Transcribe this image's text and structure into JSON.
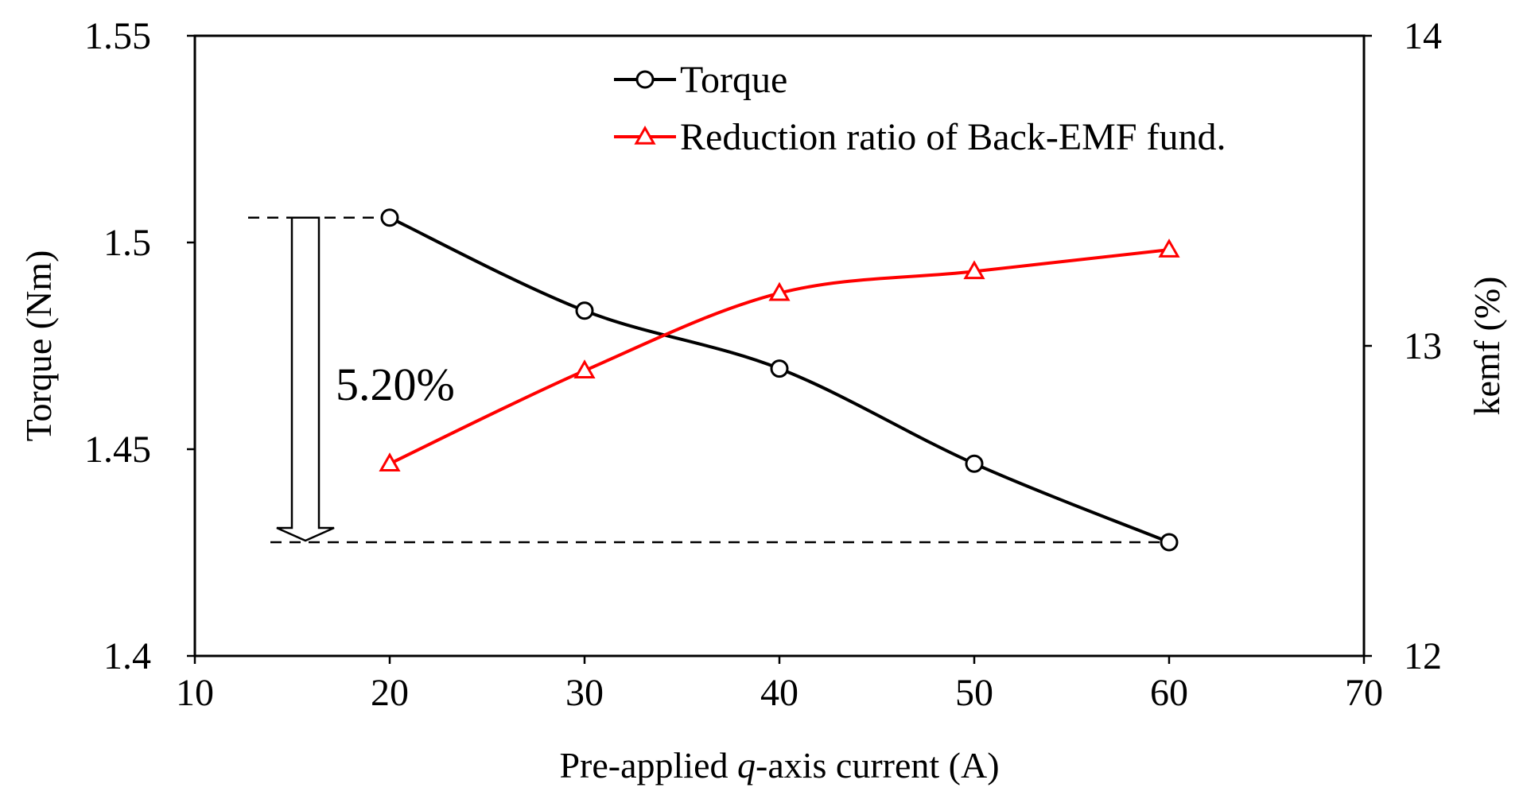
{
  "chart_data": {
    "type": "line",
    "title": "",
    "xlabel": {
      "pre": "Pre-applied ",
      "italic": "q",
      "post": "-axis current (A)"
    },
    "ylabel_left": "Torque (Nm)",
    "ylabel_right": "kemf (%)",
    "xlim": [
      10,
      70
    ],
    "xticks": [
      "10",
      "20",
      "30",
      "40",
      "50",
      "60",
      "70"
    ],
    "ylim_left": [
      1.4,
      1.55
    ],
    "yticks_left": [
      "1.4",
      "1.45",
      "1.5",
      "1.55"
    ],
    "ylim_right": [
      12,
      14
    ],
    "yticks_right": [
      "12",
      "13",
      "14"
    ],
    "grid": false,
    "legend_position": "top-center",
    "series": [
      {
        "name": "Torque",
        "axis": "left",
        "marker": "circle",
        "color": "#000000",
        "x": [
          20,
          30,
          40,
          50,
          60
        ],
        "y": [
          1.506,
          1.4835,
          1.4695,
          1.4465,
          1.4275
        ]
      },
      {
        "name": "Reduction ratio of Back-EMF fund.",
        "axis": "right",
        "marker": "triangle",
        "color": "#ff0000",
        "x": [
          20,
          30,
          40,
          50,
          60
        ],
        "y": [
          12.62,
          12.92,
          13.17,
          13.24,
          13.31
        ]
      }
    ],
    "annotation": {
      "text": "5.20%",
      "from": 1.506,
      "to": 1.4275
    }
  }
}
